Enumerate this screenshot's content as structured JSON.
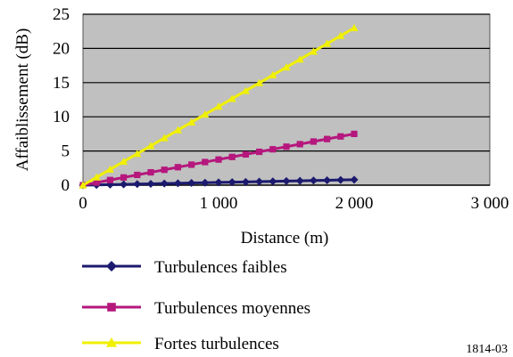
{
  "chart_data": {
    "type": "line",
    "xlabel": "Distance (m)",
    "ylabel": "Affaiblissement (dB)",
    "xlim": [
      0,
      3000
    ],
    "ylim": [
      0,
      25
    ],
    "x_ticks": [
      0,
      1000,
      2000,
      3000
    ],
    "x_tick_labels": [
      "0",
      "1 000",
      "2 000",
      "3 000"
    ],
    "y_ticks": [
      0,
      5,
      10,
      15,
      20,
      25
    ],
    "y_tick_labels": [
      "0",
      "5",
      "10",
      "15",
      "20",
      "25"
    ],
    "grid": "horizontal",
    "plot_background": "#c0c0c0",
    "legend_position": "bottom",
    "series": [
      {
        "name": "Turbulences faibles",
        "color": "#1c1a6e",
        "marker": "diamond",
        "x": [
          0,
          100,
          200,
          300,
          400,
          500,
          600,
          700,
          800,
          900,
          1000,
          1100,
          1200,
          1300,
          1400,
          1500,
          1600,
          1700,
          1800,
          1900,
          2000
        ],
        "y": [
          0.0,
          0.04,
          0.08,
          0.12,
          0.16,
          0.2,
          0.24,
          0.28,
          0.32,
          0.36,
          0.4,
          0.44,
          0.48,
          0.52,
          0.56,
          0.6,
          0.64,
          0.68,
          0.72,
          0.76,
          0.8
        ]
      },
      {
        "name": "Turbulences moyennes",
        "color": "#b5177d",
        "marker": "square",
        "x": [
          0,
          100,
          200,
          300,
          400,
          500,
          600,
          700,
          800,
          900,
          1000,
          1100,
          1200,
          1300,
          1400,
          1500,
          1600,
          1700,
          1800,
          1900,
          2000
        ],
        "y": [
          0.0,
          0.38,
          0.75,
          1.13,
          1.5,
          1.88,
          2.25,
          2.63,
          3.0,
          3.38,
          3.75,
          4.13,
          4.5,
          4.88,
          5.25,
          5.63,
          6.0,
          6.38,
          6.75,
          7.13,
          7.5
        ]
      },
      {
        "name": "Fortes turbulences",
        "color": "#f0f000",
        "marker": "triangle",
        "x": [
          0,
          100,
          200,
          300,
          400,
          500,
          600,
          700,
          800,
          900,
          1000,
          1100,
          1200,
          1300,
          1400,
          1500,
          1600,
          1700,
          1800,
          1900,
          2000
        ],
        "y": [
          0.0,
          1.15,
          2.3,
          3.45,
          4.6,
          5.75,
          6.9,
          8.05,
          9.2,
          10.35,
          11.5,
          12.65,
          13.8,
          14.95,
          16.1,
          17.25,
          18.4,
          19.55,
          20.7,
          21.85,
          23.0
        ]
      }
    ]
  },
  "figure_ref": "1814-03"
}
